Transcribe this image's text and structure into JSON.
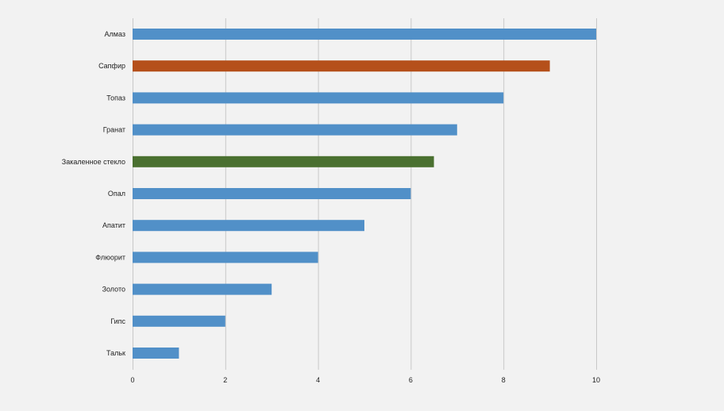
{
  "chart_data": {
    "type": "bar",
    "orientation": "horizontal",
    "categories": [
      "Алмаз",
      "Сапфир",
      "Топаз",
      "Гранат",
      "Закаленное стекло",
      "Опал",
      "Апатит",
      "Флюорит",
      "Золото",
      "Гипс",
      "Тальк"
    ],
    "values": [
      10,
      9,
      8,
      7,
      6.5,
      6,
      5,
      4,
      3,
      2,
      1
    ],
    "colors": [
      "#5190c8",
      "#b5501b",
      "#5190c8",
      "#5190c8",
      "#4a7030",
      "#5190c8",
      "#5190c8",
      "#5190c8",
      "#5190c8",
      "#5190c8",
      "#5190c8"
    ],
    "xlim": [
      0,
      10
    ],
    "xticks": [
      "0",
      "2",
      "4",
      "6",
      "8",
      "10"
    ],
    "grid": true,
    "legend": "none"
  }
}
